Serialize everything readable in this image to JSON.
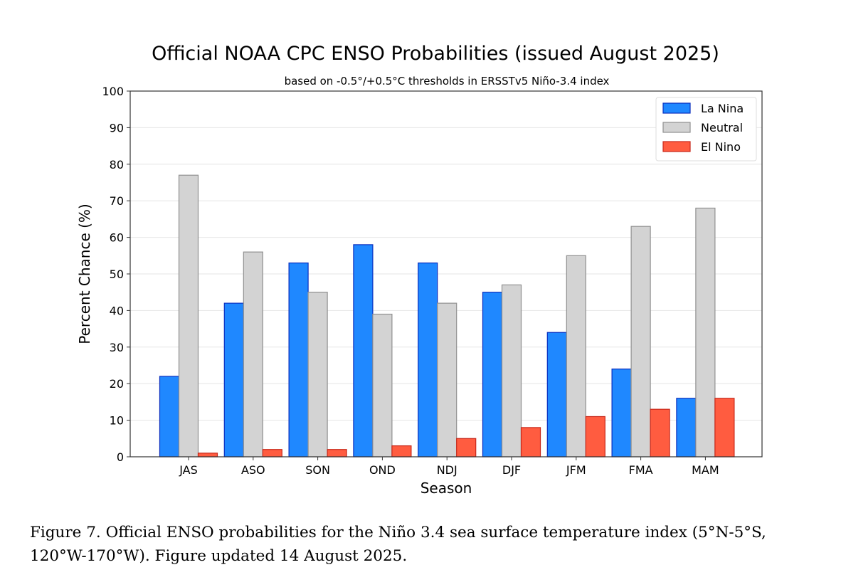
{
  "chart_data": {
    "type": "bar",
    "title": "Official NOAA CPC ENSO Probabilities (issued August 2025)",
    "subtitle": "based on -0.5°/+0.5°C thresholds in ERSSTv5 Niño-3.4 index",
    "xlabel": "Season",
    "ylabel": "Percent Chance (%)",
    "ylim": [
      0,
      100
    ],
    "yticks": [
      0,
      10,
      20,
      30,
      40,
      50,
      60,
      70,
      80,
      90,
      100
    ],
    "grid": true,
    "legend_position": "top-right",
    "categories": [
      "JAS",
      "ASO",
      "SON",
      "OND",
      "NDJ",
      "DJF",
      "JFM",
      "FMA",
      "MAM"
    ],
    "series": [
      {
        "name": "La Nina",
        "color": "#1f88ff",
        "edge": "#0a2fbf",
        "values": [
          22,
          42,
          53,
          58,
          53,
          45,
          34,
          24,
          16
        ]
      },
      {
        "name": "Neutral",
        "color": "#d3d3d3",
        "edge": "#909090",
        "values": [
          77,
          56,
          45,
          39,
          42,
          47,
          55,
          63,
          68
        ]
      },
      {
        "name": "El Nino",
        "color": "#ff5c40",
        "edge": "#c8281a",
        "values": [
          1,
          2,
          2,
          3,
          5,
          8,
          11,
          13,
          16
        ]
      }
    ]
  },
  "caption": {
    "line1": "Figure 7. Official ENSO probabilities for the Niño 3.4 sea surface temperature index (5°N-5°S,",
    "line2": "120°W-170°W). Figure updated 14 August 2025."
  }
}
